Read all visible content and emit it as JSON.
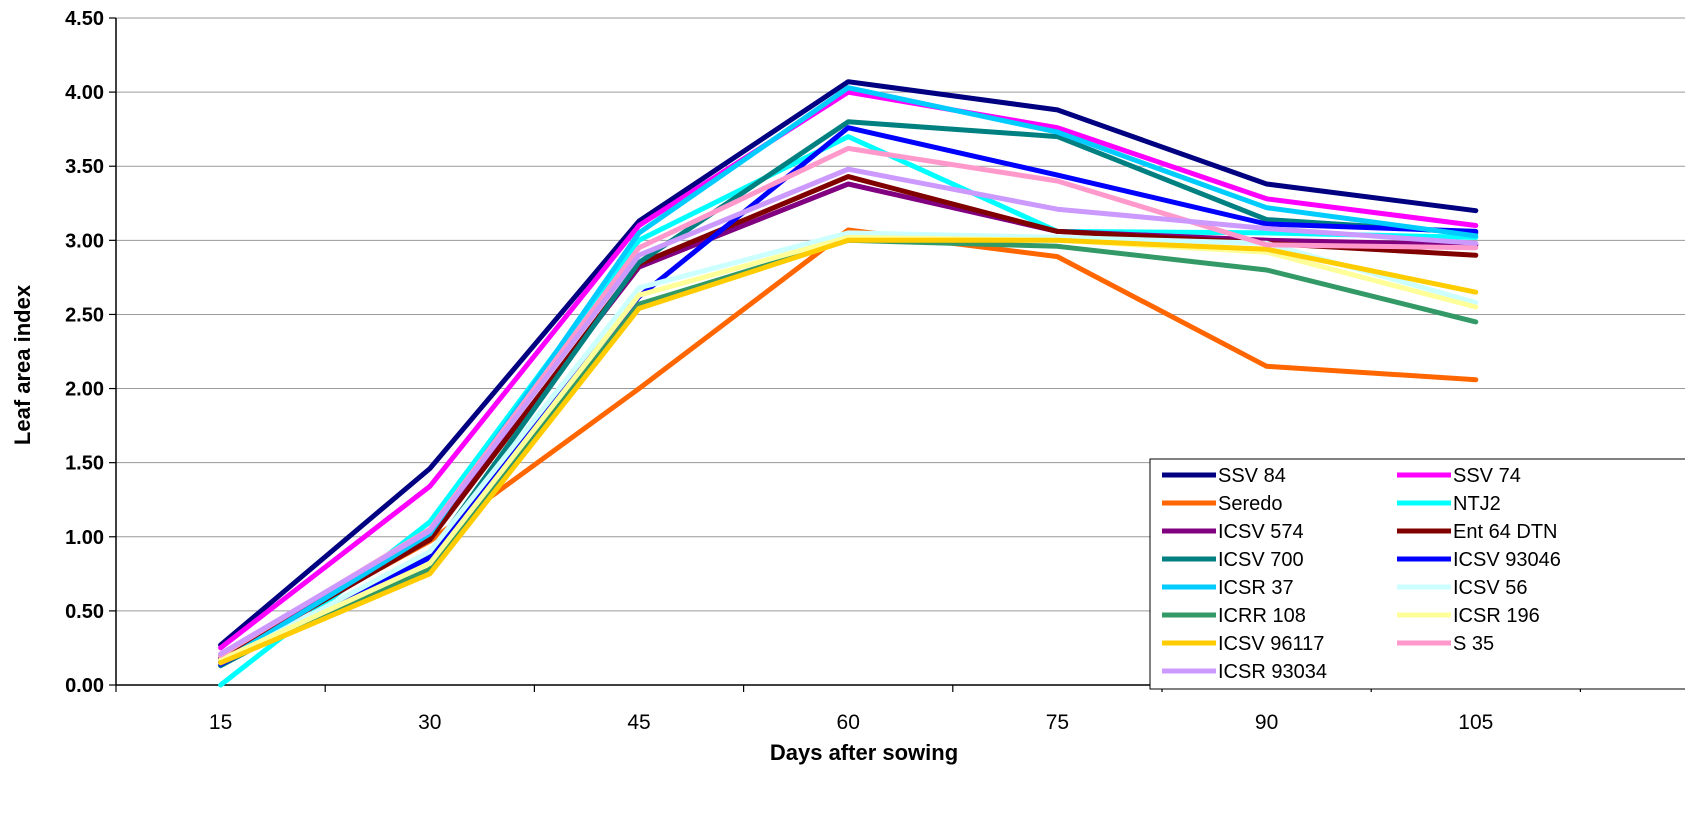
{
  "chart_data": {
    "type": "line",
    "xlabel": "Days after sowing",
    "ylabel": "Leaf area index",
    "categories": [
      "15",
      "30",
      "45",
      "60",
      "75",
      "90",
      "105"
    ],
    "ylim": [
      0,
      4.5
    ],
    "yticks": [
      "0.00",
      "0.50",
      "1.00",
      "1.50",
      "2.00",
      "2.50",
      "3.00",
      "3.50",
      "4.00",
      "4.50"
    ],
    "grid": "horizontal",
    "legend_position": "bottom-right",
    "series": [
      {
        "name": "SSV 84",
        "color": "#000080",
        "values": [
          0.27,
          1.46,
          3.13,
          4.07,
          3.88,
          3.38,
          3.2
        ]
      },
      {
        "name": "SSV 74",
        "color": "#FF00FF",
        "values": [
          0.25,
          1.34,
          3.1,
          4.0,
          3.76,
          3.28,
          3.1
        ]
      },
      {
        "name": "Seredo",
        "color": "#FF6600",
        "values": [
          0.2,
          0.97,
          2.0,
          3.07,
          2.89,
          2.15,
          2.06
        ]
      },
      {
        "name": "NTJ2",
        "color": "#00FFFF",
        "values": [
          0.0,
          1.1,
          3.0,
          3.7,
          3.06,
          3.05,
          3.02
        ]
      },
      {
        "name": "ICSV 574",
        "color": "#800080",
        "values": [
          0.18,
          1.0,
          2.82,
          3.38,
          3.06,
          3.0,
          2.97
        ]
      },
      {
        "name": "Ent 64 DTN",
        "color": "#800000",
        "values": [
          0.17,
          0.98,
          2.84,
          3.43,
          3.06,
          2.98,
          2.9
        ]
      },
      {
        "name": "ICSV 700",
        "color": "#008080",
        "values": [
          0.13,
          0.88,
          2.85,
          3.8,
          3.7,
          3.14,
          3.05
        ]
      },
      {
        "name": "ICSV 93046",
        "color": "#0000FF",
        "values": [
          0.14,
          0.86,
          2.62,
          3.76,
          3.44,
          3.11,
          3.06
        ]
      },
      {
        "name": "ICSR 37",
        "color": "#00CCFF",
        "values": [
          0.15,
          1.02,
          3.05,
          4.03,
          3.73,
          3.22,
          3.03
        ]
      },
      {
        "name": "ICSV 56",
        "color": "#CCFFFF",
        "values": [
          0.15,
          0.9,
          2.68,
          3.05,
          3.02,
          2.98,
          2.58
        ]
      },
      {
        "name": "ICRR 108",
        "color": "#339966",
        "values": [
          0.16,
          0.78,
          2.57,
          3.0,
          2.96,
          2.8,
          2.45
        ]
      },
      {
        "name": "ICSR 196",
        "color": "#FFFF99",
        "values": [
          0.17,
          0.82,
          2.63,
          3.02,
          3.0,
          2.92,
          2.55
        ]
      },
      {
        "name": "ICSV 96117",
        "color": "#FFCC00",
        "values": [
          0.15,
          0.75,
          2.54,
          3.0,
          3.0,
          2.94,
          2.65
        ]
      },
      {
        "name": "S 35",
        "color": "#FF99CC",
        "values": [
          0.2,
          1.05,
          2.95,
          3.62,
          3.4,
          2.97,
          2.95
        ]
      },
      {
        "name": "ICSR 93034",
        "color": "#CC99FF",
        "values": [
          0.21,
          1.04,
          2.9,
          3.48,
          3.21,
          3.08,
          2.98
        ]
      }
    ]
  }
}
